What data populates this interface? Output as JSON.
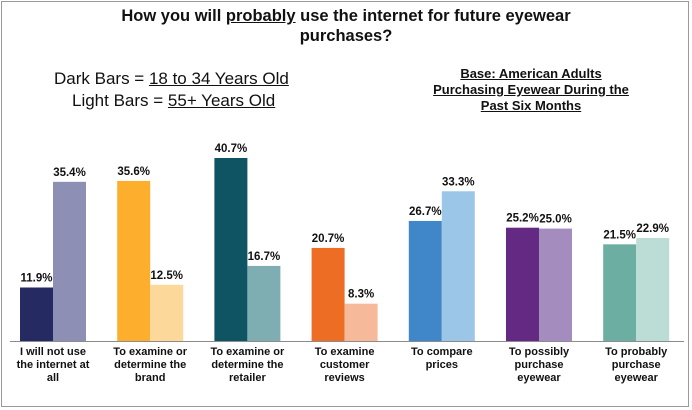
{
  "title": {
    "before": "How you will ",
    "emph": "probably",
    "after": " use the internet for future eyewear",
    "line2": "purchases?"
  },
  "legend": {
    "dark_prefix": "Dark Bars = ",
    "dark_value": "18 to 34 Years Old",
    "light_prefix": "Light Bars = ",
    "light_value": "55+ Years Old"
  },
  "base_note": {
    "line1": "Base: American Adults",
    "line2": "Purchasing Eyewear During the",
    "line3": "Past Six Months"
  },
  "chart_data": {
    "type": "bar",
    "title": "How you will probably use the internet for future eyewear purchases?",
    "categories": [
      [
        "I will not use",
        "the internet at",
        "all"
      ],
      [
        "To examine or",
        "determine the",
        "brand"
      ],
      [
        "To examine or",
        "determine the",
        "retailer"
      ],
      [
        "To examine",
        "customer",
        "reviews"
      ],
      [
        "To compare",
        "prices"
      ],
      [
        "To possibly",
        "purchase",
        "eyewear"
      ],
      [
        "To probably",
        "purchase",
        "eyewear"
      ]
    ],
    "series": [
      {
        "name": "18 to 34 Years Old",
        "values": [
          11.9,
          35.6,
          40.7,
          20.7,
          26.7,
          25.2,
          21.5
        ]
      },
      {
        "name": "55+ Years Old",
        "values": [
          35.4,
          12.5,
          16.7,
          8.3,
          33.3,
          25.0,
          22.9
        ]
      }
    ],
    "value_labels": [
      [
        "11.9%",
        "35.6%",
        "40.7%",
        "20.7%",
        "26.7%",
        "25.2%",
        "21.5%"
      ],
      [
        "35.4%",
        "12.5%",
        "16.7%",
        "8.3%",
        "33.3%",
        "25.0%",
        "22.9%"
      ]
    ],
    "colors": {
      "dark": [
        "#262a63",
        "#fcae2c",
        "#0f5462",
        "#ee6d25",
        "#3f87c8",
        "#642a83",
        "#6caea1"
      ],
      "light": [
        "#8d8fb5",
        "#fcd89a",
        "#7eaeb2",
        "#f6b999",
        "#9cc6e8",
        "#a48cbf",
        "#bcdcd6"
      ]
    },
    "ylim": [
      0,
      40.7
    ],
    "xlabel": "",
    "ylabel": "",
    "grid": false
  }
}
